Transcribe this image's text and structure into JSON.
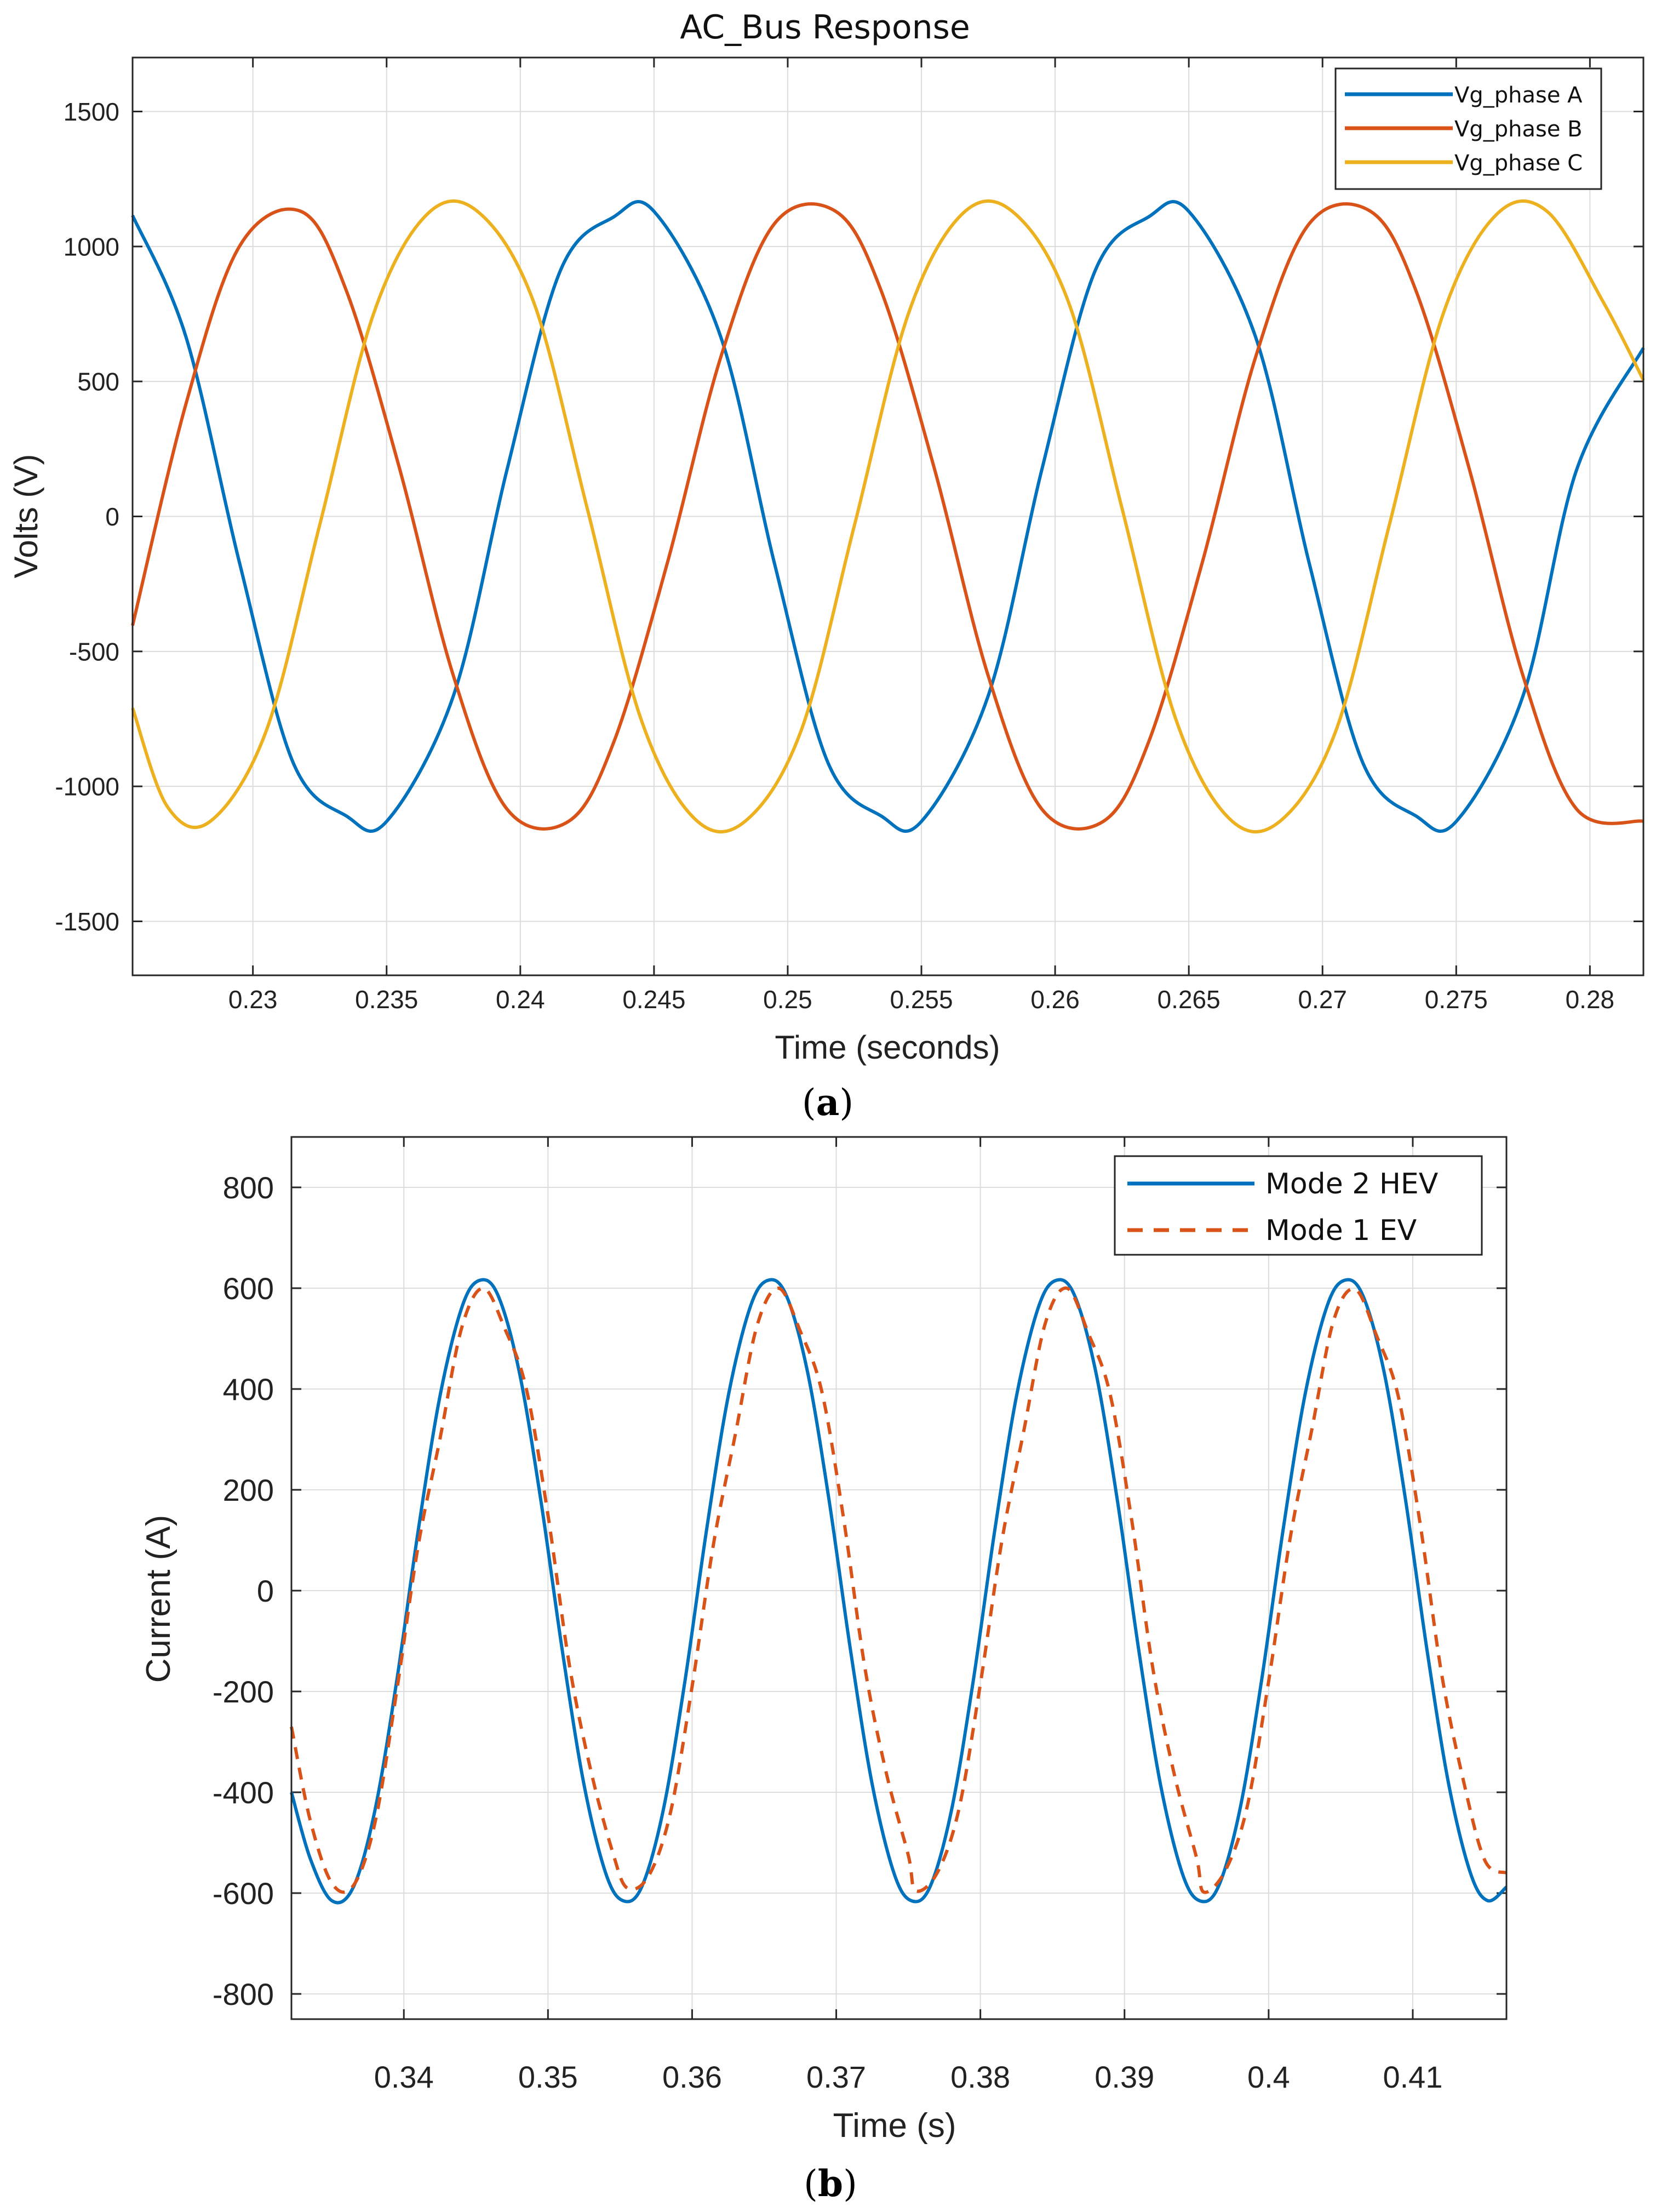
{
  "chart_data": [
    {
      "type": "line",
      "title": "AC_Bus Response",
      "xlabel": "Time (seconds)",
      "ylabel": "Volts (V)",
      "xlim": [
        0.2255,
        0.282
      ],
      "ylim": [
        -1700,
        1700
      ],
      "xticks": [
        0.23,
        0.235,
        0.24,
        0.245,
        0.25,
        0.255,
        0.26,
        0.265,
        0.27,
        0.275,
        0.28
      ],
      "xtick_labels": [
        "0.23",
        "0.235",
        "0.24",
        "0.245",
        "0.25",
        "0.255",
        "0.26",
        "0.265",
        "0.27",
        "0.275",
        "0.28"
      ],
      "yticks": [
        -1500,
        -1000,
        -500,
        0,
        500,
        1000,
        1500
      ],
      "ytick_labels": [
        "-1500",
        "-1000",
        "-500",
        "0",
        "500",
        "1000",
        "1500"
      ],
      "grid": true,
      "legend_position": "top-right",
      "series": [
        {
          "name": "Vg_phase A",
          "color": "#0072BD",
          "style": "solid",
          "x": [
            0.2255,
            0.2275,
            0.2295,
            0.2315,
            0.2335,
            0.235,
            0.2375,
            0.2395,
            0.2415,
            0.2435,
            0.245,
            0.2475,
            0.2495,
            0.2515,
            0.2535,
            0.255,
            0.2575,
            0.2595,
            0.2615,
            0.2635,
            0.265,
            0.2675,
            0.2695,
            0.2715,
            0.2735,
            0.275,
            0.2775,
            0.2795,
            0.282
          ],
          "y": [
            1115,
            664,
            -172,
            -911,
            -1110,
            -1130,
            -664,
            172,
            911,
            1110,
            1130,
            664,
            -172,
            -911,
            -1110,
            -1130,
            -664,
            172,
            911,
            1110,
            1130,
            664,
            -172,
            -911,
            -1110,
            -1130,
            -664,
            172,
            624
          ]
        },
        {
          "name": "Vg_phase B",
          "color": "#D95319",
          "style": "solid",
          "x": [
            0.2255,
            0.2275,
            0.2295,
            0.2318,
            0.2335,
            0.2355,
            0.2375,
            0.2395,
            0.2418,
            0.2435,
            0.2455,
            0.2475,
            0.2495,
            0.2518,
            0.2535,
            0.2555,
            0.2575,
            0.2595,
            0.2618,
            0.2635,
            0.2655,
            0.2675,
            0.2695,
            0.2718,
            0.2735,
            0.2755,
            0.2775,
            0.2795,
            0.282
          ],
          "y": [
            -404,
            418,
            1001,
            1130,
            835,
            172,
            -591,
            -1084,
            -1130,
            -835,
            -172,
            591,
            1084,
            1130,
            835,
            172,
            -591,
            -1084,
            -1130,
            -835,
            -172,
            591,
            1084,
            1130,
            835,
            172,
            -591,
            -1084,
            -1129
          ]
        },
        {
          "name": "Vg_phase C",
          "color": "#EDB120",
          "style": "solid",
          "x": [
            0.2255,
            0.2268,
            0.2284,
            0.2305,
            0.2325,
            0.2345,
            0.2365,
            0.2384,
            0.2405,
            0.2425,
            0.2445,
            0.2465,
            0.2484,
            0.2505,
            0.2525,
            0.2545,
            0.2565,
            0.2584,
            0.2605,
            0.2625,
            0.2645,
            0.2665,
            0.2684,
            0.2705,
            0.2725,
            0.2745,
            0.2765,
            0.2784,
            0.2805,
            0.282
          ],
          "y": [
            -710,
            -1075,
            -1130,
            -794,
            -31,
            747,
            1118,
            1130,
            794,
            31,
            -747,
            -1118,
            -1130,
            -794,
            -31,
            747,
            1118,
            1130,
            794,
            31,
            -747,
            -1118,
            -1130,
            -794,
            -31,
            747,
            1118,
            1130,
            794,
            505
          ]
        }
      ]
    },
    {
      "type": "line",
      "title": "",
      "xlabel": "Time (s)",
      "ylabel": "Current (A)",
      "xlim": [
        0.3322,
        0.4165
      ],
      "ylim": [
        -850,
        900
      ],
      "xticks": [
        0.34,
        0.35,
        0.36,
        0.37,
        0.38,
        0.39,
        0.4,
        0.41
      ],
      "xtick_labels": [
        "0.34",
        "0.35",
        "0.36",
        "0.37",
        "0.38",
        "0.39",
        "0.4",
        "0.41"
      ],
      "yticks": [
        -800,
        -600,
        -400,
        -200,
        0,
        200,
        400,
        600,
        800
      ],
      "ytick_labels": [
        "-800",
        "-600",
        "-400",
        "-200",
        "0",
        "200",
        "400",
        "600",
        "800"
      ],
      "grid": true,
      "legend_position": "top-right",
      "series": [
        {
          "name": "Mode 2 HEV",
          "color": "#0072BD",
          "style": "solid",
          "x": [
            0.3322,
            0.3335,
            0.335,
            0.3365,
            0.338,
            0.3395,
            0.341,
            0.3425,
            0.344,
            0.3452,
            0.3465,
            0.348,
            0.3495,
            0.351,
            0.3525,
            0.354,
            0.3552,
            0.3565,
            0.358,
            0.3595,
            0.361,
            0.3625,
            0.364,
            0.3652,
            0.3665,
            0.368,
            0.3695,
            0.371,
            0.3725,
            0.374,
            0.3752,
            0.3765,
            0.378,
            0.3795,
            0.381,
            0.3825,
            0.384,
            0.3852,
            0.3865,
            0.388,
            0.3895,
            0.391,
            0.3925,
            0.394,
            0.3952,
            0.3965,
            0.398,
            0.3995,
            0.401,
            0.4025,
            0.404,
            0.4052,
            0.4065,
            0.408,
            0.4095,
            0.411,
            0.4125,
            0.414,
            0.4152,
            0.4165
          ],
          "y": [
            -400,
            -531,
            -615,
            -588,
            -435,
            -180,
            120,
            385,
            560,
            615,
            588,
            435,
            180,
            -120,
            -385,
            -560,
            -615,
            -588,
            -435,
            -180,
            120,
            385,
            560,
            615,
            588,
            435,
            180,
            -120,
            -385,
            -560,
            -615,
            -588,
            -435,
            -180,
            120,
            385,
            560,
            615,
            588,
            435,
            180,
            -120,
            -385,
            -560,
            -615,
            -588,
            -435,
            -180,
            120,
            385,
            560,
            615,
            588,
            435,
            180,
            -120,
            -385,
            -560,
            -615,
            -588
          ]
        },
        {
          "name": "Mode 1 EV",
          "color": "#D95319",
          "style": "dashed",
          "x": [
            0.3322,
            0.3335,
            0.335,
            0.3365,
            0.338,
            0.3395,
            0.341,
            0.3425,
            0.344,
            0.3455,
            0.347,
            0.3485,
            0.35,
            0.3515,
            0.353,
            0.3545,
            0.3555,
            0.357,
            0.3585,
            0.36,
            0.3615,
            0.363,
            0.3645,
            0.366,
            0.3675,
            0.369,
            0.3705,
            0.372,
            0.3735,
            0.375,
            0.3755,
            0.377,
            0.3785,
            0.38,
            0.3815,
            0.383,
            0.3845,
            0.386,
            0.3875,
            0.389,
            0.3905,
            0.392,
            0.3935,
            0.395,
            0.3955,
            0.397,
            0.3985,
            0.4,
            0.4015,
            0.403,
            0.4045,
            0.406,
            0.4075,
            0.409,
            0.4105,
            0.412,
            0.4135,
            0.415,
            0.4165
          ],
          "y": [
            -270,
            -455,
            -580,
            -585,
            -460,
            -200,
            90,
            300,
            520,
            600,
            520,
            400,
            150,
            -150,
            -360,
            -520,
            -590,
            -565,
            -440,
            -190,
            95,
            310,
            525,
            600,
            515,
            395,
            145,
            -155,
            -365,
            -525,
            -595,
            -560,
            -435,
            -185,
            100,
            315,
            530,
            600,
            510,
            390,
            140,
            -160,
            -370,
            -530,
            -598,
            -555,
            -430,
            -180,
            105,
            320,
            535,
            598,
            505,
            385,
            135,
            -165,
            -375,
            -535,
            -560
          ]
        }
      ]
    }
  ],
  "captions": {
    "a": "a",
    "b": "b"
  }
}
